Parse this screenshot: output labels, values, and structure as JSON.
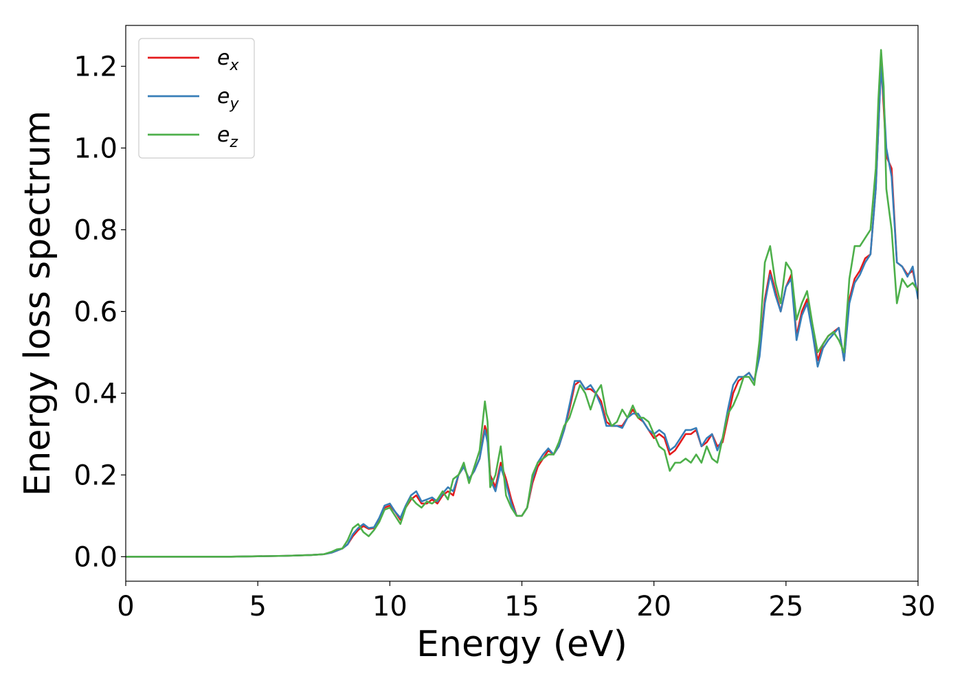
{
  "chart_data": {
    "type": "line",
    "title": "",
    "xlabel": "Energy (eV)",
    "ylabel": "Energy loss spectrum",
    "xlim": [
      0,
      30
    ],
    "ylim": [
      -0.06,
      1.3
    ],
    "xticks": [
      0,
      5,
      10,
      15,
      20,
      25,
      30
    ],
    "xtick_labels": [
      "0",
      "5",
      "10",
      "15",
      "20",
      "25",
      "30"
    ],
    "yticks": [
      0.0,
      0.2,
      0.4,
      0.6,
      0.8,
      1.0,
      1.2
    ],
    "ytick_labels": [
      "0.0",
      "0.2",
      "0.4",
      "0.6",
      "0.8",
      "1.0",
      "1.2"
    ],
    "grid": false,
    "legend_position": "top-left",
    "series": [
      {
        "name": "e",
        "subscript": "x",
        "color": "#e41a1c",
        "x": [
          0,
          2,
          4,
          6,
          7,
          7.5,
          7.8,
          8.0,
          8.2,
          8.4,
          8.6,
          8.8,
          9.0,
          9.2,
          9.4,
          9.6,
          9.8,
          10.0,
          10.2,
          10.4,
          10.6,
          10.8,
          11.0,
          11.2,
          11.4,
          11.6,
          11.8,
          12.0,
          12.2,
          12.4,
          12.6,
          12.8,
          13.0,
          13.2,
          13.4,
          13.6,
          13.7,
          13.8,
          14.0,
          14.2,
          14.4,
          14.6,
          14.8,
          15.0,
          15.2,
          15.4,
          15.6,
          15.8,
          16.0,
          16.2,
          16.4,
          16.6,
          16.8,
          17.0,
          17.2,
          17.4,
          17.6,
          17.8,
          18.0,
          18.2,
          18.4,
          18.6,
          18.8,
          19.0,
          19.2,
          19.4,
          19.6,
          19.8,
          20.0,
          20.2,
          20.4,
          20.6,
          20.8,
          21.0,
          21.2,
          21.4,
          21.6,
          21.8,
          22.0,
          22.2,
          22.4,
          22.6,
          22.8,
          23.0,
          23.2,
          23.4,
          23.6,
          23.8,
          24.0,
          24.2,
          24.4,
          24.6,
          24.8,
          25.0,
          25.2,
          25.4,
          25.6,
          25.8,
          26.0,
          26.2,
          26.4,
          26.6,
          26.8,
          27.0,
          27.2,
          27.4,
          27.6,
          27.8,
          28.0,
          28.2,
          28.4,
          28.5,
          28.6,
          28.7,
          28.8,
          29.0,
          29.2,
          29.4,
          29.6,
          29.8,
          30.0
        ],
        "y": [
          0.0,
          0.0,
          0.0,
          0.002,
          0.004,
          0.006,
          0.01,
          0.015,
          0.02,
          0.03,
          0.05,
          0.065,
          0.075,
          0.068,
          0.07,
          0.09,
          0.12,
          0.125,
          0.11,
          0.09,
          0.12,
          0.14,
          0.15,
          0.13,
          0.13,
          0.14,
          0.13,
          0.15,
          0.16,
          0.15,
          0.2,
          0.22,
          0.19,
          0.21,
          0.24,
          0.32,
          0.3,
          0.2,
          0.17,
          0.23,
          0.19,
          0.14,
          0.1,
          0.1,
          0.12,
          0.18,
          0.22,
          0.24,
          0.26,
          0.25,
          0.27,
          0.31,
          0.36,
          0.42,
          0.43,
          0.41,
          0.41,
          0.4,
          0.38,
          0.33,
          0.32,
          0.32,
          0.32,
          0.34,
          0.36,
          0.34,
          0.33,
          0.31,
          0.29,
          0.3,
          0.29,
          0.25,
          0.26,
          0.28,
          0.3,
          0.3,
          0.31,
          0.27,
          0.28,
          0.3,
          0.27,
          0.28,
          0.34,
          0.4,
          0.43,
          0.44,
          0.45,
          0.43,
          0.5,
          0.63,
          0.7,
          0.65,
          0.6,
          0.66,
          0.69,
          0.54,
          0.6,
          0.63,
          0.56,
          0.48,
          0.52,
          0.54,
          0.55,
          0.56,
          0.48,
          0.63,
          0.68,
          0.7,
          0.73,
          0.74,
          0.9,
          1.05,
          1.21,
          1.1,
          0.98,
          0.95,
          0.72,
          0.71,
          0.69,
          0.7,
          0.64
        ]
      },
      {
        "name": "e",
        "subscript": "y",
        "color": "#377eb8",
        "x": [
          0,
          2,
          4,
          6,
          7,
          7.5,
          7.8,
          8.0,
          8.2,
          8.4,
          8.6,
          8.8,
          9.0,
          9.2,
          9.4,
          9.6,
          9.8,
          10.0,
          10.2,
          10.4,
          10.6,
          10.8,
          11.0,
          11.2,
          11.4,
          11.6,
          11.8,
          12.0,
          12.2,
          12.4,
          12.6,
          12.8,
          13.0,
          13.2,
          13.4,
          13.6,
          13.7,
          13.8,
          14.0,
          14.2,
          14.4,
          14.6,
          14.8,
          15.0,
          15.2,
          15.4,
          15.6,
          15.8,
          16.0,
          16.2,
          16.4,
          16.6,
          16.8,
          17.0,
          17.2,
          17.4,
          17.6,
          17.8,
          18.0,
          18.2,
          18.4,
          18.6,
          18.8,
          19.0,
          19.2,
          19.4,
          19.6,
          19.8,
          20.0,
          20.2,
          20.4,
          20.6,
          20.8,
          21.0,
          21.2,
          21.4,
          21.6,
          21.8,
          22.0,
          22.2,
          22.4,
          22.6,
          22.8,
          23.0,
          23.2,
          23.4,
          23.6,
          23.8,
          24.0,
          24.2,
          24.4,
          24.6,
          24.8,
          25.0,
          25.2,
          25.4,
          25.6,
          25.8,
          26.0,
          26.2,
          26.4,
          26.6,
          26.8,
          27.0,
          27.2,
          27.4,
          27.6,
          27.8,
          28.0,
          28.2,
          28.4,
          28.5,
          28.6,
          28.7,
          28.8,
          29.0,
          29.2,
          29.4,
          29.6,
          29.8,
          30.0
        ],
        "y": [
          0.0,
          0.0,
          0.0,
          0.002,
          0.004,
          0.006,
          0.01,
          0.015,
          0.02,
          0.03,
          0.055,
          0.07,
          0.08,
          0.07,
          0.072,
          0.095,
          0.125,
          0.13,
          0.11,
          0.095,
          0.125,
          0.15,
          0.16,
          0.135,
          0.14,
          0.145,
          0.135,
          0.155,
          0.17,
          0.16,
          0.2,
          0.22,
          0.19,
          0.21,
          0.24,
          0.31,
          0.28,
          0.19,
          0.16,
          0.22,
          0.18,
          0.13,
          0.1,
          0.1,
          0.12,
          0.19,
          0.23,
          0.25,
          0.265,
          0.25,
          0.27,
          0.31,
          0.37,
          0.43,
          0.43,
          0.41,
          0.42,
          0.4,
          0.37,
          0.32,
          0.32,
          0.32,
          0.315,
          0.34,
          0.35,
          0.35,
          0.33,
          0.31,
          0.3,
          0.31,
          0.3,
          0.26,
          0.27,
          0.29,
          0.31,
          0.31,
          0.315,
          0.27,
          0.29,
          0.3,
          0.26,
          0.29,
          0.36,
          0.42,
          0.44,
          0.44,
          0.45,
          0.43,
          0.49,
          0.62,
          0.69,
          0.64,
          0.6,
          0.66,
          0.68,
          0.53,
          0.59,
          0.62,
          0.55,
          0.465,
          0.51,
          0.53,
          0.545,
          0.56,
          0.48,
          0.62,
          0.67,
          0.69,
          0.72,
          0.74,
          0.9,
          1.05,
          1.2,
          1.12,
          1.0,
          0.93,
          0.72,
          0.71,
          0.685,
          0.71,
          0.63
        ]
      },
      {
        "name": "e",
        "subscript": "z",
        "color": "#4daf4a",
        "x": [
          0,
          2,
          4,
          6,
          7,
          7.5,
          7.8,
          8.0,
          8.2,
          8.4,
          8.6,
          8.8,
          9.0,
          9.2,
          9.4,
          9.6,
          9.8,
          10.0,
          10.2,
          10.4,
          10.6,
          10.8,
          11.0,
          11.2,
          11.4,
          11.6,
          11.8,
          12.0,
          12.2,
          12.4,
          12.6,
          12.8,
          13.0,
          13.2,
          13.4,
          13.6,
          13.7,
          13.8,
          14.0,
          14.2,
          14.4,
          14.6,
          14.8,
          15.0,
          15.2,
          15.4,
          15.6,
          15.8,
          16.0,
          16.2,
          16.4,
          16.6,
          16.8,
          17.0,
          17.2,
          17.4,
          17.6,
          17.8,
          18.0,
          18.2,
          18.4,
          18.6,
          18.8,
          19.0,
          19.2,
          19.4,
          19.6,
          19.8,
          20.0,
          20.2,
          20.4,
          20.6,
          20.8,
          21.0,
          21.2,
          21.4,
          21.6,
          21.8,
          22.0,
          22.2,
          22.4,
          22.6,
          22.8,
          23.0,
          23.2,
          23.4,
          23.6,
          23.8,
          24.0,
          24.2,
          24.4,
          24.6,
          24.8,
          25.0,
          25.2,
          25.4,
          25.6,
          25.8,
          26.0,
          26.2,
          26.4,
          26.6,
          26.8,
          27.0,
          27.2,
          27.4,
          27.6,
          27.8,
          28.0,
          28.2,
          28.4,
          28.5,
          28.6,
          28.7,
          28.8,
          29.0,
          29.2,
          29.4,
          29.6,
          29.8,
          30.0
        ],
        "y": [
          0.0,
          0.0,
          0.0,
          0.002,
          0.004,
          0.006,
          0.012,
          0.018,
          0.02,
          0.04,
          0.07,
          0.08,
          0.06,
          0.05,
          0.065,
          0.085,
          0.115,
          0.12,
          0.1,
          0.08,
          0.12,
          0.145,
          0.13,
          0.12,
          0.135,
          0.13,
          0.14,
          0.16,
          0.14,
          0.19,
          0.2,
          0.23,
          0.18,
          0.22,
          0.26,
          0.38,
          0.33,
          0.17,
          0.2,
          0.27,
          0.15,
          0.12,
          0.1,
          0.1,
          0.12,
          0.2,
          0.23,
          0.24,
          0.25,
          0.25,
          0.28,
          0.32,
          0.34,
          0.38,
          0.42,
          0.4,
          0.36,
          0.4,
          0.42,
          0.35,
          0.32,
          0.33,
          0.36,
          0.34,
          0.37,
          0.34,
          0.34,
          0.33,
          0.3,
          0.27,
          0.26,
          0.21,
          0.23,
          0.23,
          0.24,
          0.23,
          0.25,
          0.23,
          0.27,
          0.24,
          0.23,
          0.29,
          0.35,
          0.37,
          0.4,
          0.44,
          0.44,
          0.42,
          0.53,
          0.72,
          0.76,
          0.67,
          0.62,
          0.72,
          0.7,
          0.58,
          0.62,
          0.65,
          0.57,
          0.5,
          0.52,
          0.54,
          0.55,
          0.53,
          0.5,
          0.68,
          0.76,
          0.76,
          0.78,
          0.8,
          0.95,
          1.12,
          1.24,
          1.15,
          0.9,
          0.8,
          0.62,
          0.68,
          0.66,
          0.67,
          0.65
        ]
      }
    ]
  }
}
